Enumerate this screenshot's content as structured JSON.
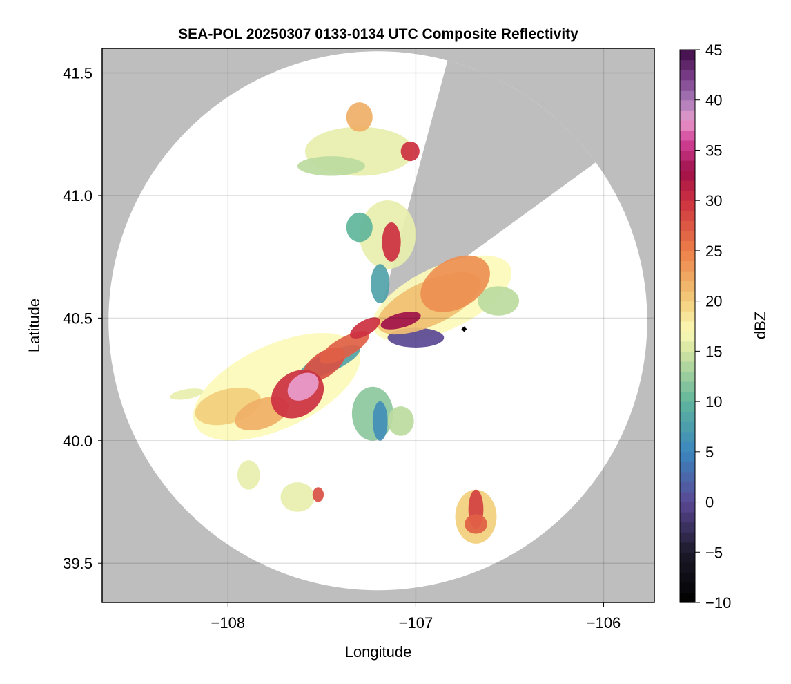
{
  "chart_data": {
    "type": "heatmap",
    "title": "SEA-POL 20250307 0133-0134 UTC Composite Reflectivity",
    "xlabel": "Longitude",
    "ylabel": "Latitude",
    "xlim": [
      -108.67,
      -105.73
    ],
    "ylim": [
      39.34,
      41.6
    ],
    "xticks": [
      {
        "v": -108,
        "label": "−108"
      },
      {
        "v": -107,
        "label": "−107"
      },
      {
        "v": -106,
        "label": "−106"
      }
    ],
    "yticks": [
      {
        "v": 39.5,
        "label": "39.5"
      },
      {
        "v": 40.0,
        "label": "40.0"
      },
      {
        "v": 40.5,
        "label": "40.5"
      },
      {
        "v": 41.0,
        "label": "41.0"
      },
      {
        "v": 41.5,
        "label": "41.5"
      }
    ],
    "grid": true,
    "background_color": "#bebebe",
    "colorbar": {
      "label": "dBZ",
      "min": -10,
      "max": 45,
      "levels": 55,
      "ticks": [
        {
          "v": -10,
          "label": "−10"
        },
        {
          "v": -5,
          "label": "−5"
        },
        {
          "v": 0,
          "label": "0"
        },
        {
          "v": 5,
          "label": "5"
        },
        {
          "v": 10,
          "label": "10"
        },
        {
          "v": 15,
          "label": "15"
        },
        {
          "v": 20,
          "label": "20"
        },
        {
          "v": 25,
          "label": "25"
        },
        {
          "v": 30,
          "label": "30"
        },
        {
          "v": 35,
          "label": "35"
        },
        {
          "v": 40,
          "label": "40"
        },
        {
          "v": 45,
          "label": "45"
        }
      ],
      "stops": [
        [
          -10,
          "#000000"
        ],
        [
          -5,
          "#1c1a2a"
        ],
        [
          0,
          "#5a4894"
        ],
        [
          5,
          "#3b86be"
        ],
        [
          10,
          "#5fb59b"
        ],
        [
          15,
          "#d3e4a0"
        ],
        [
          17,
          "#fcfab8"
        ],
        [
          20,
          "#f2cf7c"
        ],
        [
          25,
          "#ec7f48"
        ],
        [
          30,
          "#cc3040"
        ],
        [
          33,
          "#a0104a"
        ],
        [
          36,
          "#d2449a"
        ],
        [
          38,
          "#e89ccc"
        ],
        [
          40,
          "#a87ab8"
        ],
        [
          42,
          "#80448f"
        ],
        [
          45,
          "#3d0a45"
        ]
      ]
    },
    "radar": {
      "center_lon": -107.202,
      "center_lat": 40.489,
      "range_lon_deg": 1.434,
      "range_lat_deg": 1.099,
      "blocked_sector_azimuth_deg": [
        15,
        54
      ],
      "marker": {
        "lon": -106.743,
        "lat": 40.455,
        "color": "#000000"
      }
    },
    "echoes": [
      {
        "lon": -107.74,
        "lat": 40.22,
        "rx": 0.48,
        "ry": 0.17,
        "rot": -25,
        "dbz": 17
      },
      {
        "lon": -106.86,
        "lat": 40.58,
        "rx": 0.4,
        "ry": 0.13,
        "rot": -25,
        "dbz": 17
      },
      {
        "lon": -107.3,
        "lat": 41.18,
        "rx": 0.29,
        "ry": 0.1,
        "rot": 0,
        "dbz": 16
      },
      {
        "lon": -107.45,
        "lat": 41.12,
        "rx": 0.18,
        "ry": 0.04,
        "rot": 0,
        "dbz": 14
      },
      {
        "lon": -107.15,
        "lat": 40.84,
        "rx": 0.15,
        "ry": 0.14,
        "rot": 0,
        "dbz": 16
      },
      {
        "lon": -107.23,
        "lat": 40.11,
        "rx": 0.11,
        "ry": 0.11,
        "rot": 0,
        "dbz": 12
      },
      {
        "lon": -107.08,
        "lat": 40.08,
        "rx": 0.07,
        "ry": 0.06,
        "rot": 0,
        "dbz": 14
      },
      {
        "lon": -108.22,
        "lat": 40.19,
        "rx": 0.09,
        "ry": 0.02,
        "rot": -10,
        "dbz": 16
      },
      {
        "lon": -107.89,
        "lat": 39.86,
        "rx": 0.06,
        "ry": 0.06,
        "rot": 0,
        "dbz": 16
      },
      {
        "lon": -107.63,
        "lat": 39.77,
        "rx": 0.09,
        "ry": 0.06,
        "rot": 0,
        "dbz": 16
      },
      {
        "lon": -106.68,
        "lat": 39.69,
        "rx": 0.11,
        "ry": 0.11,
        "rot": 0,
        "dbz": 20
      },
      {
        "lon": -106.56,
        "lat": 40.57,
        "rx": 0.11,
        "ry": 0.06,
        "rot": 0,
        "dbz": 14
      },
      {
        "lon": -107.46,
        "lat": 40.32,
        "rx": 0.18,
        "ry": 0.04,
        "rot": -25,
        "dbz": 8
      },
      {
        "lon": -107.19,
        "lat": 40.64,
        "rx": 0.05,
        "ry": 0.08,
        "rot": 0,
        "dbz": 8
      },
      {
        "lon": -107.3,
        "lat": 40.87,
        "rx": 0.07,
        "ry": 0.06,
        "rot": 0,
        "dbz": 10
      },
      {
        "lon": -107.19,
        "lat": 40.08,
        "rx": 0.04,
        "ry": 0.08,
        "rot": 0,
        "dbz": 6
      },
      {
        "lon": -107.0,
        "lat": 40.42,
        "rx": 0.15,
        "ry": 0.04,
        "rot": 0,
        "dbz": 0
      },
      {
        "lon": -108.0,
        "lat": 40.14,
        "rx": 0.18,
        "ry": 0.07,
        "rot": -15,
        "dbz": 20
      },
      {
        "lon": -107.82,
        "lat": 40.11,
        "rx": 0.15,
        "ry": 0.06,
        "rot": -20,
        "dbz": 22
      },
      {
        "lon": -106.93,
        "lat": 40.56,
        "rx": 0.3,
        "ry": 0.09,
        "rot": -25,
        "dbz": 21
      },
      {
        "lon": -106.79,
        "lat": 40.64,
        "rx": 0.2,
        "ry": 0.1,
        "rot": -30,
        "dbz": 24
      },
      {
        "lon": -107.3,
        "lat": 41.32,
        "rx": 0.07,
        "ry": 0.06,
        "rot": 0,
        "dbz": 22
      },
      {
        "lon": -106.68,
        "lat": 39.72,
        "rx": 0.04,
        "ry": 0.08,
        "rot": 0,
        "dbz": 29
      },
      {
        "lon": -106.68,
        "lat": 39.66,
        "rx": 0.06,
        "ry": 0.04,
        "rot": 0,
        "dbz": 27
      },
      {
        "lon": -107.52,
        "lat": 39.78,
        "rx": 0.03,
        "ry": 0.03,
        "rot": 0,
        "dbz": 28
      },
      {
        "lon": -107.03,
        "lat": 41.18,
        "rx": 0.05,
        "ry": 0.04,
        "rot": 0,
        "dbz": 30
      },
      {
        "lon": -107.13,
        "lat": 40.81,
        "rx": 0.05,
        "ry": 0.08,
        "rot": 0,
        "dbz": 30
      },
      {
        "lon": -107.49,
        "lat": 40.31,
        "rx": 0.13,
        "ry": 0.05,
        "rot": -35,
        "dbz": 28
      },
      {
        "lon": -107.38,
        "lat": 40.38,
        "rx": 0.15,
        "ry": 0.04,
        "rot": -30,
        "dbz": 27
      },
      {
        "lon": -107.63,
        "lat": 40.19,
        "rx": 0.15,
        "ry": 0.09,
        "rot": -35,
        "dbz": 30
      },
      {
        "lon": -107.27,
        "lat": 40.46,
        "rx": 0.09,
        "ry": 0.03,
        "rot": -30,
        "dbz": 30
      },
      {
        "lon": -107.08,
        "lat": 40.49,
        "rx": 0.11,
        "ry": 0.03,
        "rot": -15,
        "dbz": 33
      },
      {
        "lon": -107.6,
        "lat": 40.22,
        "rx": 0.09,
        "ry": 0.05,
        "rot": -35,
        "dbz": 38
      }
    ]
  }
}
